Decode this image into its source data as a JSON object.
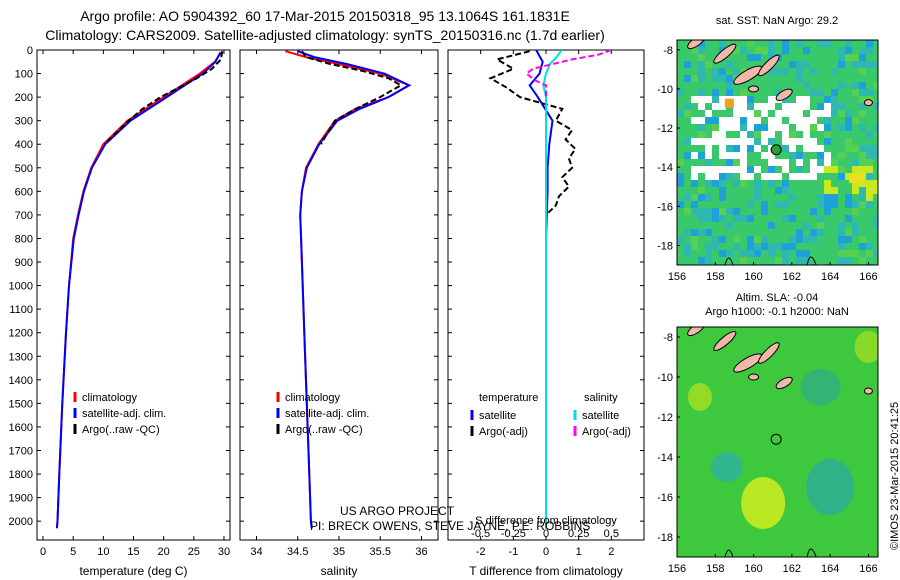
{
  "header": {
    "title_line1": "Argo profile: AO 5904392_60 17-Mar-2015 20150318_95 13.1064S 161.1831E",
    "title_line2": "Climatology: CARS2009. Satellite-adjusted climatology: synTS_20150316.nc (1.7d earlier)"
  },
  "credits": {
    "line1": "US ARGO PROJECT",
    "line2": "PI: BRECK OWENS, STEVE JAYNE, P.E. ROBBINS"
  },
  "timestamp": "©IMOS 23-Mar-2015 20:41:25",
  "colors": {
    "climatology": "#ff0000",
    "satellite": "#0000ff",
    "argo": "#000000",
    "sal_satellite": "#00e0e0",
    "sal_argo": "#ff00ff",
    "land": "#f0b8a8"
  },
  "chart_data": [
    {
      "type": "line",
      "xlabel": "temperature (deg C)",
      "ylabel": "",
      "xlim": [
        -1,
        31
      ],
      "ylim": [
        2080,
        0
      ],
      "xticks": [
        0,
        5,
        10,
        15,
        20,
        25,
        30
      ],
      "yticks": [
        0,
        100,
        200,
        300,
        400,
        500,
        600,
        700,
        800,
        900,
        1000,
        1100,
        1200,
        1300,
        1400,
        1500,
        1600,
        1700,
        1800,
        1900,
        2000
      ],
      "legend": [
        "climatology",
        "satellite-adj. clim.",
        "Argo(..raw -QC)"
      ],
      "legend_position": "lower-center",
      "series": [
        {
          "name": "climatology",
          "color": "#ff0000",
          "y": [
            10,
            50,
            100,
            150,
            200,
            250,
            300,
            400,
            500,
            600,
            700,
            800,
            1000,
            1200,
            1500,
            1800,
            2000,
            2030
          ],
          "x": [
            29.5,
            28.5,
            26,
            23,
            20,
            17,
            14,
            10,
            8,
            6.7,
            5.8,
            5,
            4.3,
            3.8,
            3.2,
            2.7,
            2.4,
            2.3
          ]
        },
        {
          "name": "satellite-adj. clim.",
          "color": "#0000ff",
          "y": [
            10,
            50,
            100,
            150,
            200,
            250,
            300,
            400,
            500,
            600,
            700,
            800,
            1000,
            1200,
            1500,
            1800,
            2000,
            2030
          ],
          "x": [
            29.4,
            28.6,
            26.5,
            23.5,
            20.5,
            17.5,
            14.5,
            10.3,
            8.1,
            6.8,
            5.9,
            5.1,
            4.3,
            3.8,
            3.2,
            2.7,
            2.4,
            2.3
          ]
        },
        {
          "name": "Argo(..raw -QC)",
          "color": "#000000",
          "y": [
            5,
            40,
            80,
            120,
            160,
            200,
            250,
            300,
            400
          ],
          "x": [
            29.7,
            29.5,
            28,
            25.5,
            22.5,
            19.5,
            16.5,
            14.2,
            10.2
          ]
        }
      ]
    },
    {
      "type": "line",
      "xlabel": "salinity",
      "ylabel": "",
      "xlim": [
        33.8,
        36.2
      ],
      "ylim": [
        2080,
        0
      ],
      "xticks": [
        34,
        34.5,
        35,
        35.5,
        36
      ],
      "yticks": [
        0,
        100,
        200,
        300,
        400,
        500,
        600,
        700,
        800,
        900,
        1000,
        1100,
        1200,
        1300,
        1400,
        1500,
        1600,
        1700,
        1800,
        1900,
        2000
      ],
      "legend": [
        "climatology",
        "satellite-adj. clim.",
        "Argo(..raw -QC)"
      ],
      "legend_position": "lower-center",
      "series": [
        {
          "name": "climatology",
          "color": "#ff0000",
          "y": [
            5,
            30,
            60,
            100,
            150,
            200,
            250,
            300,
            400,
            500,
            600,
            700,
            800,
            1000,
            1200,
            1500,
            1800,
            2000,
            2030
          ],
          "x": [
            34.35,
            34.6,
            35.0,
            35.5,
            35.85,
            35.6,
            35.2,
            34.95,
            34.75,
            34.6,
            34.55,
            34.53,
            34.54,
            34.56,
            34.58,
            34.61,
            34.64,
            34.66,
            34.67
          ]
        },
        {
          "name": "satellite-adj. clim.",
          "color": "#0000ff",
          "y": [
            5,
            30,
            60,
            100,
            150,
            200,
            250,
            300,
            400,
            500,
            600,
            700,
            800,
            1000,
            1200,
            1500,
            1800,
            2000,
            2030
          ],
          "x": [
            34.5,
            34.7,
            35.1,
            35.55,
            35.85,
            35.6,
            35.25,
            34.98,
            34.76,
            34.61,
            34.55,
            34.53,
            34.54,
            34.56,
            34.58,
            34.61,
            34.64,
            34.66,
            34.67
          ]
        },
        {
          "name": "Argo(..raw -QC)",
          "color": "#000000",
          "y": [
            5,
            30,
            60,
            90,
            120,
            150,
            200,
            250,
            300,
            400
          ],
          "x": [
            34.55,
            34.6,
            34.9,
            35.3,
            35.6,
            35.75,
            35.5,
            35.2,
            34.95,
            34.78
          ]
        }
      ]
    },
    {
      "type": "line",
      "xlabel": "T difference from climatology",
      "x2label": "S difference from climatology",
      "ylabel": "",
      "xlim": [
        -3,
        3
      ],
      "x2lim": [
        -0.75,
        0.75
      ],
      "ylim": [
        2080,
        0
      ],
      "xticks": [
        -2,
        -1,
        0,
        1,
        2
      ],
      "x2ticks": [
        -0.5,
        -0.25,
        0,
        0.25,
        0.5
      ],
      "x2ticklabels": [
        "-0.5",
        "-0.25",
        "0",
        "0.25",
        "0.5"
      ],
      "yticks": [
        0,
        100,
        200,
        300,
        400,
        500,
        600,
        700,
        800,
        900,
        1000,
        1100,
        1200,
        1300,
        1400,
        1500,
        1600,
        1700,
        1800,
        1900,
        2000
      ],
      "legend_headers": [
        "temperature",
        "salinity"
      ],
      "legend": [
        "satellite",
        "Argo(-adj)",
        "satellite",
        "Argo(-adj)"
      ],
      "legend_position": "lower-center",
      "series": [
        {
          "name": "satellite",
          "color": "#0000ff",
          "y": [
            0,
            50,
            100,
            150,
            200,
            300,
            400,
            500,
            600,
            800,
            1000,
            1500,
            2000,
            2030
          ],
          "x": [
            -0.3,
            -0.1,
            -0.2,
            -0.5,
            -0.25,
            0.2,
            0.1,
            0.05,
            0.05,
            0.0,
            0.0,
            0.0,
            0.0,
            0.0
          ]
        },
        {
          "name": "Argo(-adj)",
          "color": "#000000",
          "y": [
            5,
            40,
            80,
            120,
            160,
            200,
            250,
            300,
            340,
            380,
            420,
            460,
            500,
            540,
            580,
            620,
            660,
            700
          ],
          "x": [
            -0.5,
            -1.5,
            -1.0,
            -1.7,
            -1.2,
            -0.8,
            0.5,
            0.3,
            0.8,
            0.6,
            0.9,
            0.7,
            0.8,
            0.5,
            0.7,
            0.4,
            0.3,
            0.0
          ]
        },
        {
          "name": "satellite",
          "color": "#00e0e0",
          "y": [
            0,
            30,
            60,
            100,
            150,
            200,
            300,
            400,
            500,
            600,
            800,
            1000,
            1500,
            2000,
            2030
          ],
          "x": [
            0.12,
            0.08,
            0.03,
            0.0,
            -0.02,
            0.0,
            0.0,
            0.0,
            0.0,
            0.0,
            0.0,
            0.0,
            0.0,
            0.0,
            0.0
          ]
        },
        {
          "name": "Argo(-adj)",
          "color": "#ff00ff",
          "y": [
            0,
            20,
            40,
            60,
            80,
            100,
            130,
            150,
            200
          ],
          "x": [
            0.5,
            0.4,
            0.2,
            0.05,
            -0.1,
            -0.15,
            -0.08,
            0.0,
            0.0
          ]
        }
      ]
    },
    {
      "type": "heatmap",
      "title": "sat. SST: NaN Argo: 29.2",
      "xlim": [
        156,
        166.5
      ],
      "ylim": [
        -19,
        -7.5
      ],
      "xticks": [
        156,
        158,
        160,
        162,
        164,
        166
      ],
      "yticks": [
        -8,
        -10,
        -12,
        -14,
        -16,
        -18
      ],
      "argo_position": {
        "lon": 161.18,
        "lat": -13.11
      }
    },
    {
      "type": "heatmap",
      "title_line1": "Altim. SLA: -0.04",
      "title_line2": "Argo h1000: -0.1 h2000: NaN",
      "xlim": [
        156,
        166.5
      ],
      "ylim": [
        -19,
        -7.5
      ],
      "xticks": [
        156,
        158,
        160,
        162,
        164,
        166
      ],
      "yticks": [
        -8,
        -10,
        -12,
        -14,
        -16,
        -18
      ],
      "argo_position": {
        "lon": 161.18,
        "lat": -13.11
      }
    }
  ]
}
